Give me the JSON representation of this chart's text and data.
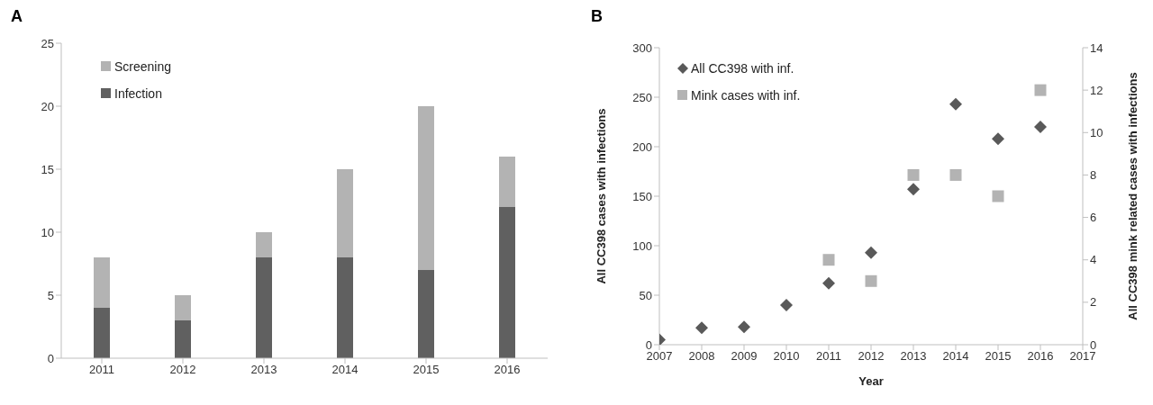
{
  "chart_data": [
    {
      "type": "bar",
      "title": "A",
      "categories": [
        "2011",
        "2012",
        "2013",
        "2014",
        "2015",
        "2016"
      ],
      "stacked": true,
      "series": [
        {
          "name": "Infection",
          "color": "#606060",
          "values": [
            4,
            3,
            8,
            8,
            7,
            12
          ]
        },
        {
          "name": "Screening",
          "color": "#b3b3b3",
          "values": [
            4,
            2,
            2,
            7,
            13,
            4
          ]
        }
      ],
      "ylim": [
        0,
        25
      ],
      "yticks": [
        0,
        5,
        10,
        15,
        20,
        25
      ],
      "grid": false,
      "legend": "top left"
    },
    {
      "type": "scatter",
      "title": "B",
      "xlabel": "Year",
      "ylabel": "All CC398 cases with infections",
      "y2label": "All CC398 mink related cases with infections",
      "x": [
        2007,
        2008,
        2009,
        2010,
        2011,
        2012,
        2013,
        2014,
        2015,
        2016
      ],
      "series": [
        {
          "name": "All CC398 with inf.",
          "color": "#595959",
          "marker": "diamond",
          "values": [
            5,
            17,
            18,
            40,
            62,
            93,
            157,
            243,
            208,
            220
          ]
        },
        {
          "name": "Mink cases with inf.",
          "color": "#b3b3b3",
          "marker": "square",
          "axis": "y2",
          "x": [
            2011,
            2012,
            2013,
            2014,
            2015,
            2016
          ],
          "values": [
            4,
            3,
            8,
            8,
            7,
            12
          ]
        }
      ],
      "xlim": [
        2007,
        2017
      ],
      "xticks": [
        2007,
        2008,
        2009,
        2010,
        2011,
        2012,
        2013,
        2014,
        2015,
        2016,
        2017
      ],
      "ylim": [
        0,
        300
      ],
      "yticks": [
        0,
        50,
        100,
        150,
        200,
        250,
        300
      ],
      "y2lim": [
        0,
        14
      ],
      "y2ticks": [
        0,
        2,
        4,
        6,
        8,
        10,
        12,
        14
      ],
      "grid": false,
      "legend": "top left"
    }
  ]
}
